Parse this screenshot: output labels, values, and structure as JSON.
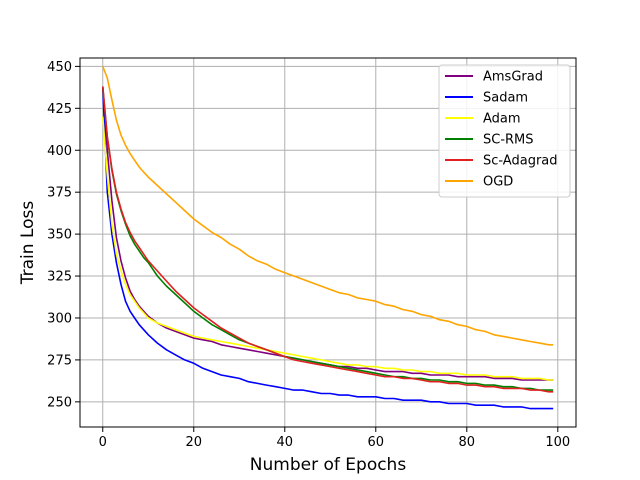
{
  "chart_data": {
    "type": "line",
    "title": "",
    "xlabel": "Number of Epochs",
    "ylabel": "Train Loss",
    "xlim": [
      -5,
      104
    ],
    "ylim": [
      235,
      455
    ],
    "xticks": [
      0,
      20,
      40,
      60,
      80,
      100
    ],
    "yticks": [
      250,
      275,
      300,
      325,
      350,
      375,
      400,
      425,
      450
    ],
    "grid": true,
    "legend_position": "top-right",
    "series": [
      {
        "name": "AmsGrad",
        "color": "#800080",
        "x": [
          0,
          1,
          2,
          3,
          4,
          5,
          6,
          7,
          8,
          9,
          10,
          12,
          14,
          16,
          18,
          20,
          22,
          24,
          26,
          28,
          30,
          32,
          34,
          36,
          38,
          40,
          42,
          44,
          46,
          48,
          50,
          52,
          54,
          56,
          58,
          60,
          62,
          64,
          66,
          68,
          70,
          72,
          74,
          76,
          78,
          80,
          82,
          84,
          86,
          88,
          90,
          92,
          94,
          96,
          98,
          99
        ],
        "y": [
          438,
          400,
          370,
          348,
          334,
          324,
          316,
          311,
          307,
          304,
          301,
          297,
          294,
          292,
          290,
          288,
          287,
          286,
          284,
          283,
          282,
          281,
          280,
          279,
          278,
          277,
          276,
          275,
          274,
          273,
          272,
          271,
          271,
          270,
          270,
          269,
          268,
          268,
          268,
          267,
          267,
          266,
          266,
          266,
          265,
          265,
          265,
          265,
          264,
          264,
          264,
          263,
          263,
          263,
          263,
          263
        ]
      },
      {
        "name": "Sadam",
        "color": "#0000ff",
        "x": [
          0,
          1,
          2,
          3,
          4,
          5,
          6,
          7,
          8,
          9,
          10,
          12,
          14,
          16,
          18,
          20,
          22,
          24,
          26,
          28,
          30,
          32,
          34,
          36,
          38,
          40,
          42,
          44,
          46,
          48,
          50,
          52,
          54,
          56,
          58,
          60,
          62,
          64,
          66,
          68,
          70,
          72,
          74,
          76,
          78,
          80,
          82,
          84,
          86,
          88,
          90,
          92,
          94,
          96,
          98,
          99
        ],
        "y": [
          437,
          375,
          350,
          333,
          320,
          310,
          304,
          300,
          296,
          293,
          290,
          285,
          281,
          278,
          275,
          273,
          270,
          268,
          266,
          265,
          264,
          262,
          261,
          260,
          259,
          258,
          257,
          257,
          256,
          255,
          255,
          254,
          254,
          253,
          253,
          253,
          252,
          252,
          251,
          251,
          251,
          250,
          250,
          249,
          249,
          249,
          248,
          248,
          248,
          247,
          247,
          247,
          246,
          246,
          246,
          246
        ]
      },
      {
        "name": "Adam",
        "color": "#ffff00",
        "x": [
          0,
          1,
          2,
          3,
          4,
          5,
          6,
          7,
          8,
          9,
          10,
          12,
          14,
          16,
          18,
          20,
          22,
          24,
          26,
          28,
          30,
          32,
          34,
          36,
          38,
          40,
          42,
          44,
          46,
          48,
          50,
          52,
          54,
          56,
          58,
          60,
          62,
          64,
          66,
          68,
          70,
          72,
          74,
          76,
          78,
          80,
          82,
          84,
          86,
          88,
          90,
          92,
          94,
          96,
          98,
          99
        ],
        "y": [
          420,
          385,
          356,
          338,
          328,
          320,
          314,
          310,
          306,
          303,
          300,
          297,
          295,
          293,
          291,
          289,
          288,
          287,
          286,
          285,
          284,
          283,
          282,
          281,
          280,
          279,
          278,
          277,
          276,
          275,
          274,
          273,
          272,
          272,
          271,
          271,
          270,
          270,
          269,
          269,
          268,
          268,
          267,
          267,
          267,
          266,
          266,
          266,
          265,
          265,
          265,
          264,
          264,
          264,
          263,
          263
        ]
      },
      {
        "name": "SC-RMS",
        "color": "#008000",
        "x": [
          0,
          1,
          2,
          3,
          4,
          5,
          6,
          7,
          8,
          9,
          10,
          12,
          14,
          16,
          18,
          20,
          22,
          24,
          26,
          28,
          30,
          32,
          34,
          36,
          38,
          40,
          42,
          44,
          46,
          48,
          50,
          52,
          54,
          56,
          58,
          60,
          62,
          64,
          66,
          68,
          70,
          72,
          74,
          76,
          78,
          80,
          82,
          84,
          86,
          88,
          90,
          92,
          94,
          96,
          98,
          99
        ],
        "y": [
          437,
          408,
          388,
          374,
          364,
          356,
          349,
          344,
          340,
          336,
          333,
          325,
          319,
          314,
          309,
          304,
          300,
          296,
          293,
          290,
          287,
          285,
          283,
          281,
          279,
          277,
          276,
          275,
          274,
          273,
          272,
          271,
          270,
          269,
          268,
          267,
          266,
          265,
          265,
          264,
          264,
          263,
          263,
          262,
          262,
          261,
          261,
          260,
          260,
          259,
          259,
          258,
          258,
          257,
          257,
          257
        ]
      },
      {
        "name": "Sc-Adagrad",
        "color": "#e02020",
        "x": [
          0,
          1,
          2,
          3,
          4,
          5,
          6,
          7,
          8,
          9,
          10,
          12,
          14,
          16,
          18,
          20,
          22,
          24,
          26,
          28,
          30,
          32,
          34,
          36,
          38,
          40,
          42,
          44,
          46,
          48,
          50,
          52,
          54,
          56,
          58,
          60,
          62,
          64,
          66,
          68,
          70,
          72,
          74,
          76,
          78,
          80,
          82,
          84,
          86,
          88,
          90,
          92,
          94,
          96,
          98,
          99
        ],
        "y": [
          438,
          408,
          389,
          375,
          365,
          357,
          351,
          346,
          342,
          338,
          334,
          328,
          322,
          316,
          311,
          306,
          302,
          298,
          294,
          291,
          288,
          285,
          283,
          281,
          279,
          277,
          275,
          274,
          273,
          272,
          271,
          270,
          269,
          268,
          267,
          266,
          265,
          265,
          264,
          264,
          263,
          262,
          262,
          261,
          261,
          260,
          260,
          259,
          259,
          258,
          258,
          258,
          257,
          257,
          256,
          256
        ]
      },
      {
        "name": "OGD",
        "color": "#ffa500",
        "x": [
          0,
          1,
          2,
          3,
          4,
          5,
          6,
          7,
          8,
          9,
          10,
          12,
          14,
          16,
          18,
          20,
          22,
          24,
          26,
          28,
          30,
          32,
          34,
          36,
          38,
          40,
          42,
          44,
          46,
          48,
          50,
          52,
          54,
          56,
          58,
          60,
          62,
          64,
          66,
          68,
          70,
          72,
          74,
          76,
          78,
          80,
          82,
          84,
          86,
          88,
          90,
          92,
          94,
          96,
          98,
          99
        ],
        "y": [
          450,
          443,
          430,
          418,
          409,
          403,
          398,
          394,
          390,
          387,
          384,
          379,
          374,
          369,
          364,
          359,
          355,
          351,
          348,
          344,
          341,
          337,
          334,
          332,
          329,
          327,
          325,
          323,
          321,
          319,
          317,
          315,
          314,
          312,
          311,
          310,
          308,
          307,
          305,
          304,
          302,
          301,
          299,
          298,
          296,
          295,
          293,
          292,
          290,
          289,
          288,
          287,
          286,
          285,
          284,
          284
        ]
      }
    ]
  }
}
